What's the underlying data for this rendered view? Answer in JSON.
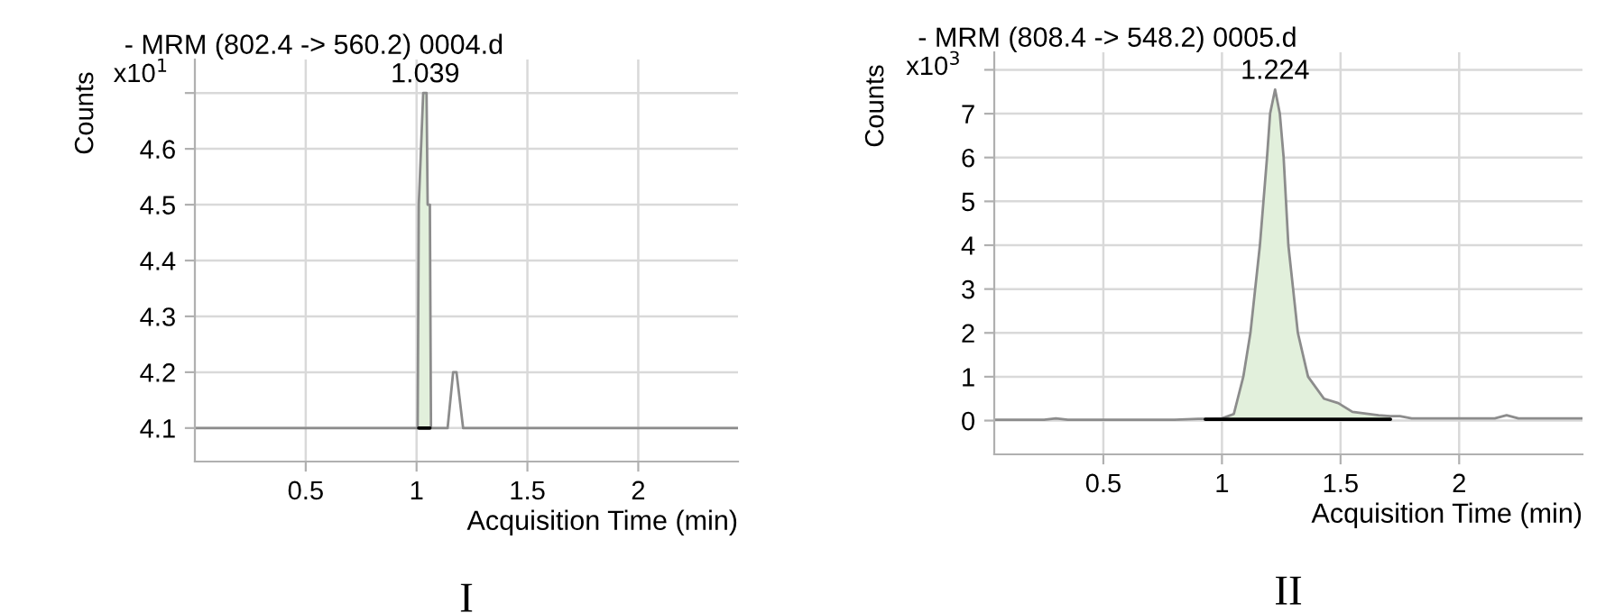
{
  "chart_data": [
    {
      "type": "line",
      "title": "- MRM (802.4 -> 560.2) 0004.d",
      "xlabel": "Acquisition Time (min)",
      "ylabel": "Counts",
      "annotations": [
        "x10$^{1}$",
        "I",
        {
          "text": "1.039",
          "x": 1.039,
          "y": 4.7
        }
      ],
      "xlim": [
        0.0,
        2.45
      ],
      "ylim": [
        4.04,
        4.76
      ],
      "xticks": [
        0.5,
        1,
        1.5,
        2
      ],
      "yticks": [
        4.1,
        4.2,
        4.3,
        4.4,
        4.5,
        4.6,
        {
          "value": 4.7,
          "label": null
        }
      ],
      "grid": true,
      "series": [
        {
          "color": "#8c8c8c",
          "x": [
            0.0,
            1.005,
            1.01,
            1.02,
            1.03,
            1.045,
            1.05,
            1.06,
            1.065,
            1.14,
            1.165,
            1.18,
            1.21,
            2.45
          ],
          "values": [
            4.1,
            4.1,
            4.5,
            4.6,
            4.7,
            4.7,
            4.5,
            4.5,
            4.1,
            4.1,
            4.2,
            4.2,
            4.1,
            4.1
          ]
        },
        {
          "type": "area",
          "color": "#e2f0dc",
          "x": [
            1.01,
            1.02,
            1.03,
            1.045,
            1.05,
            1.06
          ],
          "values": [
            4.5,
            4.6,
            4.7,
            4.7,
            4.5,
            4.5
          ]
        },
        {
          "color": "#000000",
          "x": [
            1.01,
            1.06
          ],
          "values": [
            4.1,
            4.1
          ]
        }
      ]
    },
    {
      "type": "line",
      "title": "- MRM (808.4 -> 548.2) 0005.d",
      "xlabel": "Acquisition Time (min)",
      "ylabel": "Counts",
      "annotations": [
        "x10$^{3}$",
        "II",
        {
          "text": "1.224",
          "x": 1.224,
          "y": 7.55
        }
      ],
      "xlim": [
        0.04,
        2.52
      ],
      "ylim": [
        -0.77,
        8.4
      ],
      "xticks": [
        0.5,
        1,
        1.5,
        2
      ],
      "yticks": [
        0,
        1,
        2,
        3,
        4,
        5,
        6,
        7,
        {
          "value": 8,
          "label": null
        }
      ],
      "grid": true,
      "series": [
        {
          "color": "#8c8c8c",
          "x": [
            0.04,
            0.25,
            0.3,
            0.35,
            0.8,
            0.9,
            0.95,
            1.0,
            1.05,
            1.09,
            1.12,
            1.16,
            1.19,
            1.203,
            1.224,
            1.244,
            1.26,
            1.28,
            1.3,
            1.32,
            1.363,
            1.43,
            1.49,
            1.55,
            1.66,
            1.71,
            1.75,
            1.8,
            2.15,
            2.2,
            2.25,
            2.52
          ],
          "values": [
            0.02,
            0.02,
            0.05,
            0.02,
            0.02,
            0.04,
            0.04,
            0.05,
            0.15,
            1,
            2,
            4,
            6,
            7,
            7.55,
            7,
            6,
            4,
            3,
            2,
            1,
            0.5,
            0.4,
            0.2,
            0.12,
            0.1,
            0.1,
            0.05,
            0.05,
            0.12,
            0.05,
            0.05
          ]
        },
        {
          "type": "area",
          "color": "#e2f0dc",
          "x": [
            0.95,
            1.0,
            1.05,
            1.09,
            1.12,
            1.16,
            1.19,
            1.203,
            1.224,
            1.244,
            1.26,
            1.28,
            1.3,
            1.32,
            1.363,
            1.43,
            1.49,
            1.55,
            1.66,
            1.71
          ],
          "values": [
            0.04,
            0.05,
            0.15,
            1,
            2,
            4,
            6,
            7,
            7.55,
            7,
            6,
            4,
            3,
            2,
            1,
            0.5,
            0.4,
            0.2,
            0.12,
            0.1
          ]
        },
        {
          "color": "#000000",
          "x": [
            0.93,
            1.32,
            1.71
          ],
          "values": [
            0.03,
            0.03,
            0.03
          ]
        }
      ]
    }
  ]
}
